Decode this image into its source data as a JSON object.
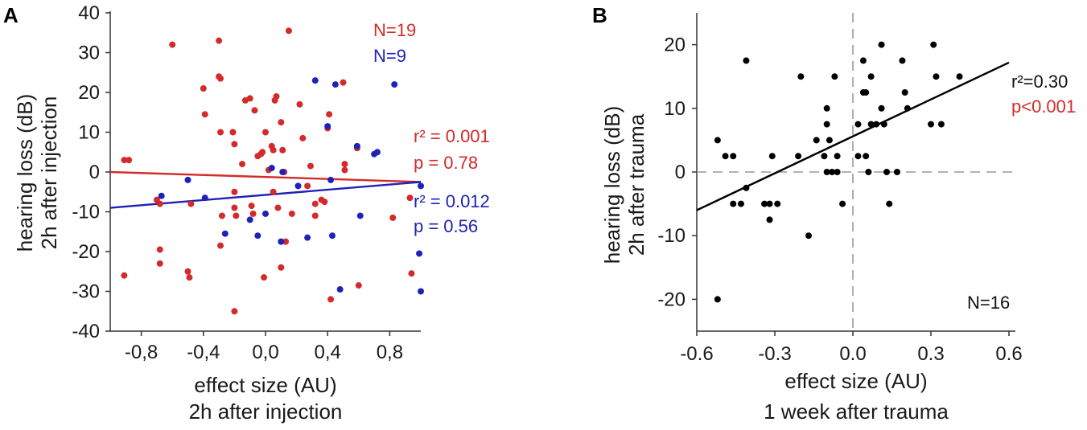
{
  "chart_data": [
    {
      "panel": "A",
      "type": "scatter",
      "ylabel_line1": "hearing loss (dB)",
      "ylabel_line2": "2h after injection",
      "xlabel_line1": "effect size (AU)",
      "xlabel_line2": "2h after injection",
      "xlim": [
        -1.0,
        1.0
      ],
      "ylim": [
        -40,
        40
      ],
      "xticks": [
        -0.8,
        -0.4,
        0.0,
        0.4,
        0.8
      ],
      "xtick_labels": [
        "-0,8",
        "-0,4",
        "0,0",
        "0,4",
        "0,8"
      ],
      "yticks": [
        40,
        30,
        20,
        10,
        0,
        -10,
        -20,
        -30,
        -40
      ],
      "ytick_labels": [
        "40",
        "30",
        "20",
        "10",
        "0",
        "-10",
        "-20",
        "-30",
        "-40"
      ],
      "colors": {
        "red": "#d42a2a",
        "blue": "#1f22b8"
      },
      "series": [
        {
          "name": "N=19",
          "color": "#d42a2a",
          "stats": {
            "r2": "r² = 0.001",
            "p": "p = 0.78"
          },
          "fit": {
            "x": [
              -1.0,
              1.0
            ],
            "y": [
              0.0,
              -2.5
            ]
          },
          "points": [
            [
              -0.91,
              3
            ],
            [
              -0.88,
              3
            ],
            [
              -0.91,
              -26
            ],
            [
              -0.7,
              -7
            ],
            [
              -0.68,
              -8
            ],
            [
              -0.68,
              -19.5
            ],
            [
              -0.68,
              -23
            ],
            [
              -0.6,
              32
            ],
            [
              -0.5,
              -25
            ],
            [
              -0.49,
              -26.5
            ],
            [
              -0.48,
              -8
            ],
            [
              -0.4,
              21
            ],
            [
              -0.39,
              14.5
            ],
            [
              -0.3,
              33
            ],
            [
              -0.3,
              24
            ],
            [
              -0.29,
              23.5
            ],
            [
              -0.29,
              10
            ],
            [
              -0.28,
              -11
            ],
            [
              -0.29,
              -18.5
            ],
            [
              -0.21,
              10
            ],
            [
              -0.2,
              7
            ],
            [
              -0.2,
              -5
            ],
            [
              -0.2,
              -9
            ],
            [
              -0.19,
              -11
            ],
            [
              -0.2,
              -35
            ],
            [
              -0.15,
              2
            ],
            [
              -0.13,
              18
            ],
            [
              -0.1,
              18.5
            ],
            [
              -0.09,
              -8.5
            ],
            [
              -0.08,
              -10.5
            ],
            [
              -0.07,
              15.5
            ],
            [
              -0.05,
              4
            ],
            [
              -0.03,
              4.5
            ],
            [
              -0.02,
              5
            ],
            [
              -0.01,
              -26.5
            ],
            [
              0.0,
              10
            ],
            [
              0.02,
              0.5
            ],
            [
              0.04,
              6.5
            ],
            [
              0.05,
              5.5
            ],
            [
              0.06,
              18
            ],
            [
              0.07,
              19
            ],
            [
              0.05,
              -5
            ],
            [
              0.08,
              -9
            ],
            [
              0.1,
              12.5
            ],
            [
              0.11,
              5.5
            ],
            [
              0.12,
              0
            ],
            [
              0.1,
              -24
            ],
            [
              0.13,
              -17.5
            ],
            [
              0.15,
              35.5
            ],
            [
              0.17,
              -10.5
            ],
            [
              0.22,
              17
            ],
            [
              0.24,
              8.5
            ],
            [
              0.27,
              -3.5
            ],
            [
              0.29,
              1.5
            ],
            [
              0.32,
              -8
            ],
            [
              0.32,
              -11
            ],
            [
              0.36,
              -7
            ],
            [
              0.38,
              -7.5
            ],
            [
              0.41,
              14.5
            ],
            [
              0.4,
              11
            ],
            [
              0.42,
              -32
            ],
            [
              0.5,
              22.5
            ],
            [
              0.51,
              2
            ],
            [
              0.51,
              0.5
            ],
            [
              0.59,
              6
            ],
            [
              0.6,
              -28.5
            ],
            [
              0.82,
              -11.5
            ],
            [
              0.93,
              -6.5
            ],
            [
              0.94,
              -25.5
            ]
          ]
        },
        {
          "name": "N=9",
          "color": "#1f22b8",
          "stats": {
            "r2": "r² = 0.012",
            "p": "p = 0.56"
          },
          "fit": {
            "x": [
              -1.0,
              1.0
            ],
            "y": [
              -9.0,
              -2.5
            ]
          },
          "points": [
            [
              -0.67,
              -6
            ],
            [
              -0.5,
              -2
            ],
            [
              -0.39,
              -6.5
            ],
            [
              -0.26,
              -15.5
            ],
            [
              -0.1,
              -12
            ],
            [
              -0.05,
              -16
            ],
            [
              0.0,
              -10.5
            ],
            [
              0.04,
              1
            ],
            [
              0.1,
              -17.5
            ],
            [
              0.11,
              0
            ],
            [
              0.21,
              -3.5
            ],
            [
              0.27,
              -16.5
            ],
            [
              0.32,
              23
            ],
            [
              0.4,
              11.5
            ],
            [
              0.42,
              -2
            ],
            [
              0.43,
              -16
            ],
            [
              0.45,
              22
            ],
            [
              0.48,
              -29.5
            ],
            [
              0.59,
              6.5
            ],
            [
              0.61,
              -11
            ],
            [
              0.7,
              4.5
            ],
            [
              0.72,
              5
            ],
            [
              0.83,
              22
            ],
            [
              0.99,
              -20.5
            ],
            [
              1.0,
              -3.5
            ],
            [
              1.0,
              -30
            ]
          ]
        }
      ]
    },
    {
      "panel": "B",
      "type": "scatter",
      "ylabel_line1": "hearing loss (dB)",
      "ylabel_line2": "2h after trauma",
      "xlabel_line1": "effect size (AU)",
      "xlabel_line2": "1 week after trauma",
      "xlim": [
        -0.6,
        0.6
      ],
      "ylim": [
        -25,
        25
      ],
      "xticks": [
        -0.6,
        -0.3,
        0.0,
        0.3,
        0.6
      ],
      "xtick_labels": [
        "-0.6",
        "-0.3",
        "0.0",
        "0.3",
        "0.6"
      ],
      "yticks": [
        20,
        10,
        0,
        -10,
        -20
      ],
      "ytick_labels": [
        "20",
        "10",
        "0",
        "-10",
        "-20"
      ],
      "stats": {
        "r2": "r²=0.30",
        "p": "p<0.001",
        "n": "N=16"
      },
      "colors": {
        "points": "#000000",
        "p_text": "#d42a2a",
        "fit": "#000000",
        "zero_lines": "#9a9a9a"
      },
      "fit": {
        "x": [
          -0.6,
          0.6
        ],
        "y": [
          -6.0,
          17.2
        ]
      },
      "points": [
        [
          -0.52,
          5
        ],
        [
          -0.52,
          -20
        ],
        [
          -0.49,
          2.5
        ],
        [
          -0.46,
          2.5
        ],
        [
          -0.46,
          -5
        ],
        [
          -0.43,
          -5
        ],
        [
          -0.41,
          17.5
        ],
        [
          -0.41,
          -2.5
        ],
        [
          -0.34,
          -5
        ],
        [
          -0.32,
          -5
        ],
        [
          -0.32,
          -7.5
        ],
        [
          -0.31,
          2.5
        ],
        [
          -0.29,
          -5
        ],
        [
          -0.21,
          2.5
        ],
        [
          -0.2,
          15
        ],
        [
          -0.17,
          -10
        ],
        [
          -0.14,
          5
        ],
        [
          -0.11,
          2.5
        ],
        [
          -0.1,
          10
        ],
        [
          -0.1,
          7.5
        ],
        [
          -0.1,
          0
        ],
        [
          -0.09,
          5
        ],
        [
          -0.08,
          0
        ],
        [
          -0.07,
          15
        ],
        [
          -0.06,
          0
        ],
        [
          -0.06,
          2.5
        ],
        [
          -0.04,
          -5
        ],
        [
          0.02,
          2.5
        ],
        [
          0.02,
          7.5
        ],
        [
          0.04,
          12.5
        ],
        [
          0.04,
          17.5
        ],
        [
          0.05,
          2.5
        ],
        [
          0.05,
          12.5
        ],
        [
          0.06,
          0
        ],
        [
          0.07,
          7.5
        ],
        [
          0.07,
          15
        ],
        [
          0.09,
          7.5
        ],
        [
          0.11,
          10
        ],
        [
          0.11,
          20
        ],
        [
          0.12,
          7.5
        ],
        [
          0.13,
          0
        ],
        [
          0.17,
          0
        ],
        [
          0.19,
          17.5
        ],
        [
          0.2,
          12.5
        ],
        [
          0.21,
          10
        ],
        [
          0.3,
          7.5
        ],
        [
          0.31,
          20
        ],
        [
          0.32,
          15
        ],
        [
          0.34,
          7.5
        ],
        [
          0.41,
          15
        ],
        [
          0.14,
          -5
        ]
      ]
    }
  ]
}
